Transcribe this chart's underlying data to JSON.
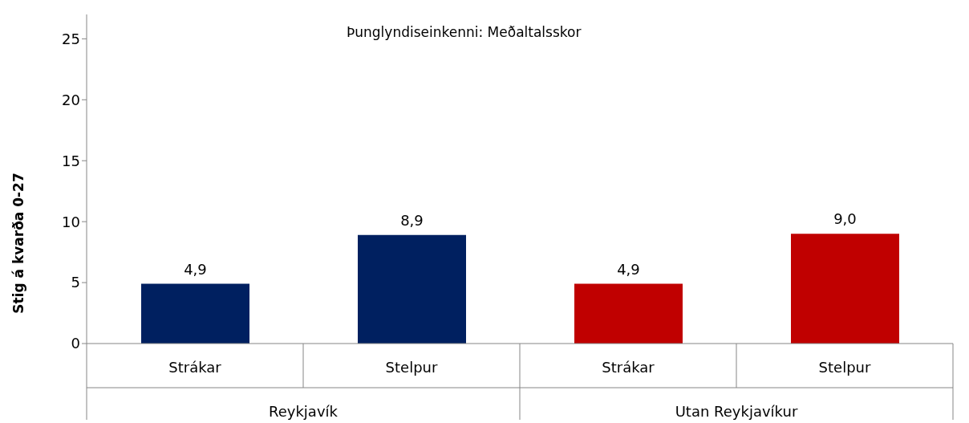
{
  "chart_data": {
    "type": "bar",
    "title": "Þunglyndiseinkenni: Meðaltalsskor",
    "ylabel": "Stig á kvarða 0-27",
    "categories": [
      "Strákar",
      "Stelpur",
      "Strákar",
      "Stelpur"
    ],
    "values": [
      4.9,
      8.9,
      4.9,
      9.0
    ],
    "colors": [
      "#002060",
      "#002060",
      "#c00000",
      "#c00000"
    ],
    "value_labels": [
      "4,9",
      "8,9",
      "4,9",
      "9,0"
    ],
    "annotations": [
      "Reykjavík",
      "Utan Reykjavíkur"
    ],
    "ylim": [
      0,
      27
    ],
    "yticks": [
      0,
      5,
      10,
      15,
      20,
      25
    ]
  }
}
